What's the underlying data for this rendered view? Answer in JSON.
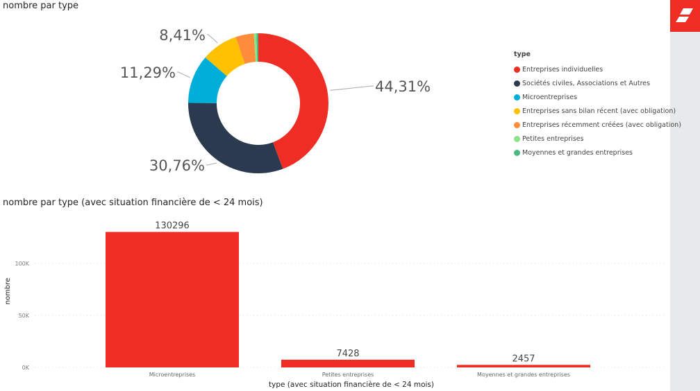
{
  "chart_data": [
    {
      "type": "pie",
      "title": "nombre par type",
      "legend_title": "type",
      "legend_position": "right",
      "categories": [
        "Entreprises individuelles",
        "Sociétés civiles, Associations et Autres",
        "Microentreprises",
        "Entreprises sans bilan récent (avec obligation)",
        "Entreprises récemment créées (avec obligation)",
        "Petites entreprises",
        "Moyennes et grandes entreprises"
      ],
      "values": [
        44.31,
        30.76,
        11.29,
        8.41,
        4.2,
        0.6,
        0.43
      ],
      "labels": [
        "44,31%",
        "30,76%",
        "11,29%",
        "8,41%",
        null,
        null,
        null
      ],
      "colors": [
        "#ee2e24",
        "#2b3a4e",
        "#00aed9",
        "#ffc000",
        "#ff8c3a",
        "#8ce38c",
        "#4cb87f"
      ]
    },
    {
      "type": "bar",
      "title": "nombre par type (avec situation financière de < 24 mois)",
      "categories": [
        "Microentreprises",
        "Petites entreprises",
        "Moyennes et grandes entreprises"
      ],
      "values": [
        130296,
        7428,
        2457
      ],
      "xlabel": "type (avec situation financière de < 24 mois)",
      "ylabel": "nombre",
      "yticks": [
        0,
        50000,
        100000
      ],
      "ytick_labels": [
        "0K",
        "50K",
        "100K"
      ],
      "ylim": [
        0,
        130296
      ],
      "grid": true,
      "color": "#ee2e24"
    }
  ]
}
